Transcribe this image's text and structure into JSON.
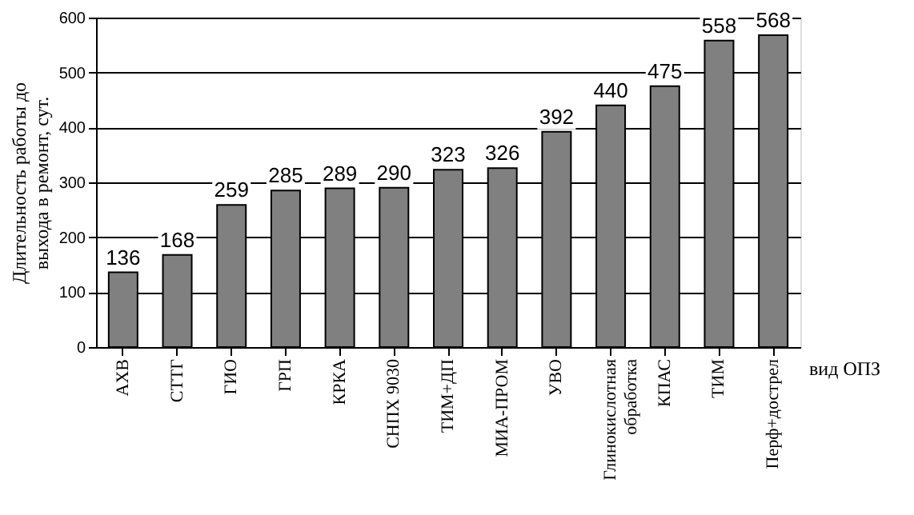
{
  "chart_data": {
    "type": "bar",
    "ylabel": "Длительность работы до выхода в ремонт, сут.",
    "xlabel": "вид ОПЗ",
    "categories": [
      "АХВ",
      "СТТГ",
      "ГИО",
      "ГРП",
      "КРКА",
      "СНПХ 9030",
      "ТИМ+ДП",
      "МИА-ПРОМ",
      "УВО",
      "Глинокислотная\nобработка",
      "КПАС",
      "ТИМ",
      "Перф+дострел"
    ],
    "values": [
      136,
      168,
      259,
      285,
      289,
      290,
      323,
      326,
      392,
      440,
      475,
      558,
      568
    ],
    "color": "#808080",
    "ylim": [
      0,
      600
    ],
    "yticks": [
      0,
      100,
      200,
      300,
      400,
      500,
      600
    ],
    "grid": "y",
    "data_labels": true
  }
}
